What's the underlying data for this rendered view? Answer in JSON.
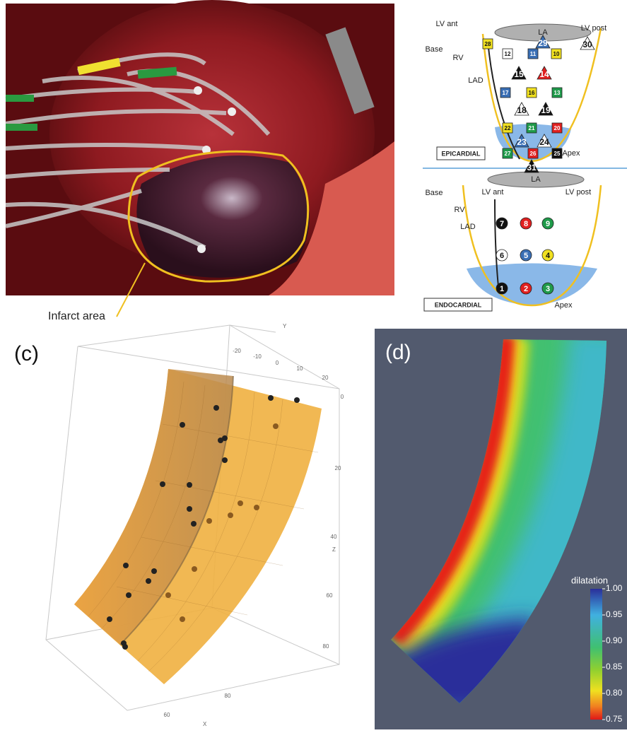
{
  "panel_a": {
    "annotation": "Infarct area"
  },
  "panel_b": {
    "epicardial": {
      "title": "EPICARDIAL",
      "labels": {
        "lv_ant": "LV ant",
        "la": "LA",
        "lv_post": "LV post",
        "base": "Base",
        "rv": "RV",
        "lad": "LAD",
        "apex": "Apex"
      },
      "markers": [
        {
          "n": 28,
          "shape": "square",
          "color": "#f0e020"
        },
        {
          "n": 29,
          "shape": "triangle",
          "color": "#3a6fb5"
        },
        {
          "n": 30,
          "shape": "triangle",
          "color": "#ffffff"
        },
        {
          "n": 12,
          "shape": "square",
          "color": "#ffffff"
        },
        {
          "n": 11,
          "shape": "square",
          "color": "#3a6fb5"
        },
        {
          "n": 10,
          "shape": "square",
          "color": "#f0e020"
        },
        {
          "n": 15,
          "shape": "triangle",
          "color": "#111111"
        },
        {
          "n": 14,
          "shape": "triangle",
          "color": "#e02020"
        },
        {
          "n": 17,
          "shape": "square",
          "color": "#3a6fb5"
        },
        {
          "n": 16,
          "shape": "square",
          "color": "#f0e020"
        },
        {
          "n": 13,
          "shape": "square",
          "color": "#1f9a4a"
        },
        {
          "n": 18,
          "shape": "triangle",
          "color": "#ffffff"
        },
        {
          "n": 19,
          "shape": "triangle",
          "color": "#111111"
        },
        {
          "n": 22,
          "shape": "square",
          "color": "#f0e020"
        },
        {
          "n": 21,
          "shape": "square",
          "color": "#1f9a4a"
        },
        {
          "n": 20,
          "shape": "square",
          "color": "#e02020"
        },
        {
          "n": 23,
          "shape": "triangle",
          "color": "#3a6fb5"
        },
        {
          "n": 24,
          "shape": "triangle",
          "color": "#ffffff"
        },
        {
          "n": 27,
          "shape": "square",
          "color": "#1f9a4a"
        },
        {
          "n": 26,
          "shape": "square",
          "color": "#e02020"
        },
        {
          "n": 25,
          "shape": "square",
          "color": "#111111"
        },
        {
          "n": 31,
          "shape": "triangle",
          "color": "#111111"
        }
      ]
    },
    "endocardial": {
      "title": "ENDOCARDIAL",
      "labels": {
        "la": "LA",
        "base": "Base",
        "lv_ant": "LV ant",
        "lv_post": "LV post",
        "rv": "RV",
        "lad": "LAD",
        "apex": "Apex"
      },
      "markers": [
        {
          "n": 7,
          "shape": "circle",
          "color": "#111111"
        },
        {
          "n": 8,
          "shape": "circle",
          "color": "#e02020"
        },
        {
          "n": 9,
          "shape": "circle",
          "color": "#1f9a4a"
        },
        {
          "n": 6,
          "shape": "circle",
          "color": "#ffffff"
        },
        {
          "n": 5,
          "shape": "circle",
          "color": "#3a6fb5"
        },
        {
          "n": 4,
          "shape": "circle",
          "color": "#f0e020"
        },
        {
          "n": 1,
          "shape": "circle",
          "color": "#111111"
        },
        {
          "n": 2,
          "shape": "circle",
          "color": "#e02020"
        },
        {
          "n": 3,
          "shape": "circle",
          "color": "#1f9a4a"
        }
      ]
    }
  },
  "panel_c": {
    "label": "(c)",
    "y_axis": {
      "title": "Y",
      "ticks": [
        -20,
        -10,
        0,
        10,
        20
      ]
    },
    "z_axis": {
      "title": "Z",
      "ticks": [
        0,
        20,
        40,
        60,
        80
      ]
    },
    "x_axis": {
      "title": "X",
      "ticks": [
        60,
        80
      ]
    }
  },
  "panel_d": {
    "label": "(d)",
    "colorbar": {
      "title": "dilatation",
      "range": [
        0.75,
        1
      ],
      "ticks": [
        {
          "value": 1,
          "label": "1.00"
        },
        {
          "value": 0.95,
          "label": "0.95"
        },
        {
          "value": 0.9,
          "label": "0.90"
        },
        {
          "value": 0.85,
          "label": "0.85"
        },
        {
          "value": 0.8,
          "label": "0.80"
        },
        {
          "value": 0.75,
          "label": "0.75"
        }
      ]
    }
  }
}
